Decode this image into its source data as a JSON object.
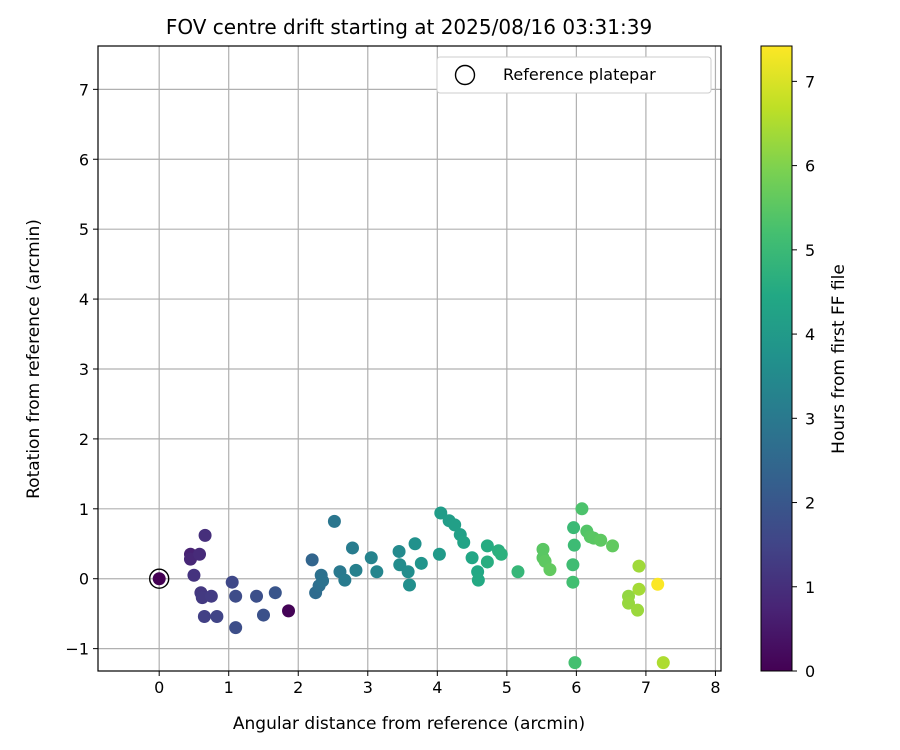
{
  "chart_data": {
    "type": "scatter",
    "title": "FOV centre drift starting at 2025/08/16 03:31:39",
    "xlabel": "Angular distance from reference (arcmin)",
    "ylabel": "Rotation from reference (arcmin)",
    "xlim": [
      -0.88,
      8.08
    ],
    "ylim": [
      -1.32,
      7.62
    ],
    "xticks": [
      0,
      1,
      2,
      3,
      4,
      5,
      6,
      7,
      8
    ],
    "yticks": [
      -1,
      0,
      1,
      2,
      3,
      4,
      5,
      6,
      7
    ],
    "grid": true,
    "legend": {
      "position": "top-right",
      "entries": [
        "Reference platepar"
      ]
    },
    "colorbar": {
      "label": "Hours from first FF file",
      "colormap": "viridis",
      "range": [
        0,
        7.42
      ],
      "ticks": [
        0,
        1,
        2,
        3,
        4,
        5,
        6,
        7
      ]
    },
    "reference_point": {
      "x": 0,
      "y": 0
    },
    "points": [
      {
        "x": 0.0,
        "y": 0.0,
        "c": 0.0
      },
      {
        "x": 1.86,
        "y": -0.46,
        "c": 0.05
      },
      {
        "x": 0.45,
        "y": 0.35,
        "c": 0.7
      },
      {
        "x": 0.45,
        "y": 0.28,
        "c": 0.8
      },
      {
        "x": 0.58,
        "y": 0.35,
        "c": 0.9
      },
      {
        "x": 0.66,
        "y": 0.62,
        "c": 1.0
      },
      {
        "x": 0.5,
        "y": 0.05,
        "c": 1.1
      },
      {
        "x": 0.6,
        "y": -0.2,
        "c": 1.2
      },
      {
        "x": 0.62,
        "y": -0.27,
        "c": 1.25
      },
      {
        "x": 0.75,
        "y": -0.25,
        "c": 1.3
      },
      {
        "x": 0.65,
        "y": -0.54,
        "c": 1.4
      },
      {
        "x": 0.83,
        "y": -0.54,
        "c": 1.5
      },
      {
        "x": 1.05,
        "y": -0.05,
        "c": 1.6
      },
      {
        "x": 1.1,
        "y": -0.25,
        "c": 1.7
      },
      {
        "x": 1.1,
        "y": -0.7,
        "c": 1.75
      },
      {
        "x": 1.4,
        "y": -0.25,
        "c": 1.8
      },
      {
        "x": 1.5,
        "y": -0.52,
        "c": 1.85
      },
      {
        "x": 1.67,
        "y": -0.2,
        "c": 1.95
      },
      {
        "x": 2.2,
        "y": 0.27,
        "c": 2.4
      },
      {
        "x": 2.25,
        "y": -0.2,
        "c": 2.6
      },
      {
        "x": 2.3,
        "y": -0.1,
        "c": 2.7
      },
      {
        "x": 2.33,
        "y": 0.05,
        "c": 2.75
      },
      {
        "x": 2.35,
        "y": -0.03,
        "c": 2.8
      },
      {
        "x": 2.52,
        "y": 0.82,
        "c": 2.9
      },
      {
        "x": 2.6,
        "y": 0.1,
        "c": 3.0
      },
      {
        "x": 2.67,
        "y": -0.02,
        "c": 3.05
      },
      {
        "x": 2.78,
        "y": 0.44,
        "c": 3.1
      },
      {
        "x": 2.83,
        "y": 0.12,
        "c": 3.2
      },
      {
        "x": 3.05,
        "y": 0.3,
        "c": 3.3
      },
      {
        "x": 3.13,
        "y": 0.1,
        "c": 3.35
      },
      {
        "x": 3.45,
        "y": 0.39,
        "c": 3.5
      },
      {
        "x": 3.46,
        "y": 0.2,
        "c": 3.55
      },
      {
        "x": 3.58,
        "y": 0.1,
        "c": 3.6
      },
      {
        "x": 3.6,
        "y": -0.09,
        "c": 3.65
      },
      {
        "x": 3.68,
        "y": 0.5,
        "c": 3.7
      },
      {
        "x": 3.77,
        "y": 0.22,
        "c": 3.8
      },
      {
        "x": 4.03,
        "y": 0.35,
        "c": 4.0
      },
      {
        "x": 4.05,
        "y": 0.94,
        "c": 4.05
      },
      {
        "x": 4.17,
        "y": 0.83,
        "c": 4.1
      },
      {
        "x": 4.25,
        "y": 0.77,
        "c": 4.15
      },
      {
        "x": 4.33,
        "y": 0.63,
        "c": 4.2
      },
      {
        "x": 4.38,
        "y": 0.52,
        "c": 4.3
      },
      {
        "x": 4.5,
        "y": 0.3,
        "c": 4.4
      },
      {
        "x": 4.58,
        "y": 0.1,
        "c": 4.45
      },
      {
        "x": 4.59,
        "y": -0.02,
        "c": 4.5
      },
      {
        "x": 4.72,
        "y": 0.47,
        "c": 4.55
      },
      {
        "x": 4.72,
        "y": 0.24,
        "c": 4.6
      },
      {
        "x": 4.88,
        "y": 0.4,
        "c": 4.65
      },
      {
        "x": 4.92,
        "y": 0.35,
        "c": 4.7
      },
      {
        "x": 5.16,
        "y": 0.1,
        "c": 4.9
      },
      {
        "x": 5.52,
        "y": 0.42,
        "c": 5.5
      },
      {
        "x": 5.52,
        "y": 0.3,
        "c": 5.5
      },
      {
        "x": 5.55,
        "y": 0.25,
        "c": 5.55
      },
      {
        "x": 5.62,
        "y": 0.13,
        "c": 5.6
      },
      {
        "x": 5.96,
        "y": 0.73,
        "c": 5.0
      },
      {
        "x": 5.97,
        "y": 0.48,
        "c": 5.05
      },
      {
        "x": 5.95,
        "y": 0.2,
        "c": 5.1
      },
      {
        "x": 5.95,
        "y": -0.05,
        "c": 5.15
      },
      {
        "x": 5.98,
        "y": -1.2,
        "c": 5.2
      },
      {
        "x": 6.08,
        "y": 1.0,
        "c": 5.3
      },
      {
        "x": 6.15,
        "y": 0.68,
        "c": 5.4
      },
      {
        "x": 6.2,
        "y": 0.6,
        "c": 5.45
      },
      {
        "x": 6.25,
        "y": 0.58,
        "c": 5.5
      },
      {
        "x": 6.35,
        "y": 0.55,
        "c": 5.55
      },
      {
        "x": 6.52,
        "y": 0.47,
        "c": 5.6
      },
      {
        "x": 6.75,
        "y": -0.25,
        "c": 6.2
      },
      {
        "x": 6.75,
        "y": -0.35,
        "c": 6.25
      },
      {
        "x": 6.88,
        "y": -0.45,
        "c": 6.3
      },
      {
        "x": 6.9,
        "y": 0.18,
        "c": 6.35
      },
      {
        "x": 6.9,
        "y": -0.15,
        "c": 6.4
      },
      {
        "x": 7.25,
        "y": -1.2,
        "c": 6.5
      },
      {
        "x": 7.17,
        "y": -0.08,
        "c": 7.4
      }
    ]
  }
}
